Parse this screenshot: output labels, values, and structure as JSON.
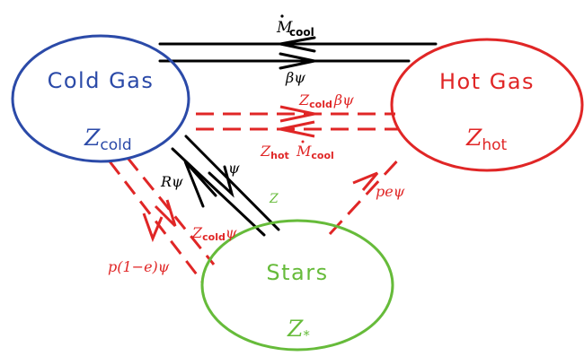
{
  "colors": {
    "cold": "#2b4aa8",
    "hot": "#e02626",
    "stars": "#66bb3a",
    "flow": "#000000",
    "metal_flow": "#e02626"
  },
  "nodes": {
    "cold": {
      "title": "Cold Gas",
      "metal_symbol": "Z",
      "metal_sub": "cold"
    },
    "hot": {
      "title": "Hot Gas",
      "metal_symbol": "Z",
      "metal_sub": "hot"
    },
    "stars": {
      "title": "Stars",
      "metal_symbol": "Z",
      "metal_sub": "*"
    }
  },
  "edges": {
    "cooling": {
      "symbol": "M",
      "sub": "cool"
    },
    "feedback": {
      "label": "βψ"
    },
    "metal_feedback": {
      "symbol": "Z",
      "sub": "cold",
      "rest": "βψ"
    },
    "metal_cooling": {
      "z": "Z",
      "z_sub": "hot",
      "m": "M",
      "m_sub": "cool"
    },
    "star_formation": {
      "label": "ψ"
    },
    "recycling": {
      "label": "Rψ"
    },
    "metal_recycle": {
      "symbol": "Z",
      "sub": "cold",
      "rest": "ψ"
    },
    "stars_metal": {
      "label": "Z"
    },
    "yield_cold": {
      "label": "p(1−e)ψ"
    },
    "yield_hot": {
      "label": "peψ"
    }
  }
}
